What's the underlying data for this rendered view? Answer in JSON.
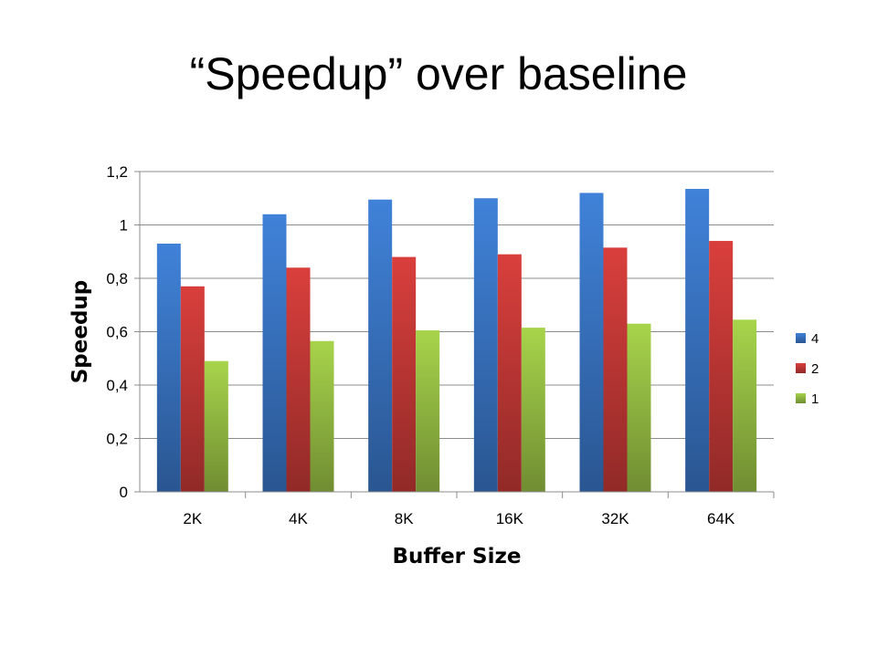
{
  "slide": {
    "title": "“Speedup” over baseline"
  },
  "chart_data": {
    "type": "bar",
    "title": "",
    "xlabel": "Buffer Size",
    "ylabel": "Speedup",
    "categories": [
      "2K",
      "4K",
      "8K",
      "16K",
      "32K",
      "64K"
    ],
    "series": [
      {
        "name": "4",
        "values": [
          0.93,
          1.04,
          1.095,
          1.1,
          1.12,
          1.135
        ],
        "color": "#3b78c9"
      },
      {
        "name": "2",
        "values": [
          0.77,
          0.84,
          0.88,
          0.89,
          0.915,
          0.94
        ],
        "color": "#c93a38"
      },
      {
        "name": "1",
        "values": [
          0.49,
          0.565,
          0.605,
          0.615,
          0.63,
          0.645
        ],
        "color": "#9bc445"
      }
    ],
    "ylim": [
      0,
      1.2
    ],
    "yticks": [
      "0",
      "0,2",
      "0,4",
      "0,6",
      "0,8",
      "1",
      "1,2"
    ],
    "grid": true,
    "legend": "right"
  }
}
